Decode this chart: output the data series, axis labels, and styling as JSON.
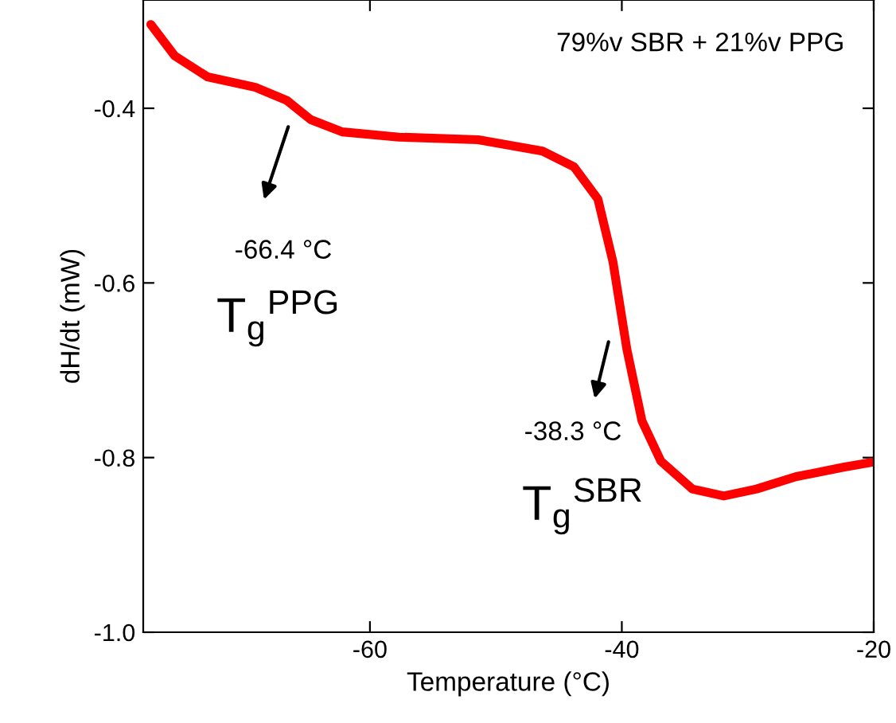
{
  "chart_data": {
    "type": "line",
    "xlabel": "Temperature (°C)",
    "ylabel": "dH/dt (mW)",
    "xlim": [
      -78,
      -20
    ],
    "xticks": [
      -60,
      -40,
      -20
    ],
    "ylim": [
      -1.0,
      -0.276
    ],
    "yticks": [
      {
        "value": -1.0,
        "label": "-1.0"
      },
      -0.8,
      -0.6,
      -0.4
    ],
    "series": [
      {
        "color": "#ff0000",
        "x": [
          -77.4,
          -75.5,
          -72.9,
          -69.1,
          -66.6,
          -64.7,
          -62.2,
          -57.7,
          -51.4,
          -46.3,
          -43.8,
          -41.9,
          -40.7,
          -39.6,
          -38.4,
          -36.9,
          -34.4,
          -31.9,
          -29.3,
          -26.2,
          -22.4,
          -20
        ],
        "values": [
          -0.304,
          -0.34,
          -0.364,
          -0.376,
          -0.391,
          -0.413,
          -0.427,
          -0.433,
          -0.436,
          -0.449,
          -0.467,
          -0.504,
          -0.576,
          -0.676,
          -0.758,
          -0.804,
          -0.836,
          -0.844,
          -0.836,
          -0.822,
          -0.811,
          -0.805
        ]
      }
    ],
    "annotations": [
      "79%v SBR + 21%v PPG",
      "-66.4 °C",
      "-38.3 °C",
      "T$_{g}$$^{PPG}$",
      "T$_{g}$$^{SBR}$"
    ],
    "grid": false,
    "legend": false,
    "marker": "none",
    "line_style": "solid"
  }
}
